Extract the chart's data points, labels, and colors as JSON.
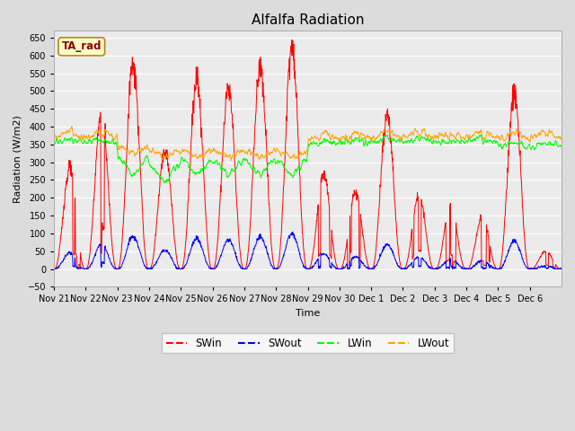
{
  "title": "Alfalfa Radiation",
  "xlabel": "Time",
  "ylabel": "Radiation (W/m2)",
  "ylim": [
    -50,
    670
  ],
  "yticks": [
    -50,
    0,
    50,
    100,
    150,
    200,
    250,
    300,
    350,
    400,
    450,
    500,
    550,
    600,
    650
  ],
  "bg_color": "#dcdcdc",
  "plot_bg_color": "#ebebeb",
  "grid_color": "#ffffff",
  "legend_labels": [
    "SWin",
    "SWout",
    "LWin",
    "LWout"
  ],
  "legend_colors": [
    "#ff0000",
    "#0000ff",
    "#00ff00",
    "#ffa500"
  ],
  "annotation_text": "TA_rad",
  "annotation_color": "#8b0000",
  "annotation_bg": "#ffffcc",
  "title_fontsize": 11,
  "tick_label_fontsize": 7,
  "axis_label_fontsize": 8,
  "n_days": 16,
  "n_per_day": 96,
  "peak_day": [
    280,
    440,
    575,
    340,
    530,
    510,
    570,
    615,
    265,
    215,
    430,
    210,
    180,
    145,
    495,
    50
  ],
  "xtick_labels": [
    "Nov 21",
    "Nov 22",
    "Nov 23",
    "Nov 24",
    "Nov 25",
    "Nov 26",
    "Nov 27",
    "Nov 28",
    "Nov 29",
    "Nov 30",
    "Dec 1",
    "Dec 2",
    "Dec 3",
    "Dec 4",
    "Dec 5",
    "Dec 6"
  ]
}
